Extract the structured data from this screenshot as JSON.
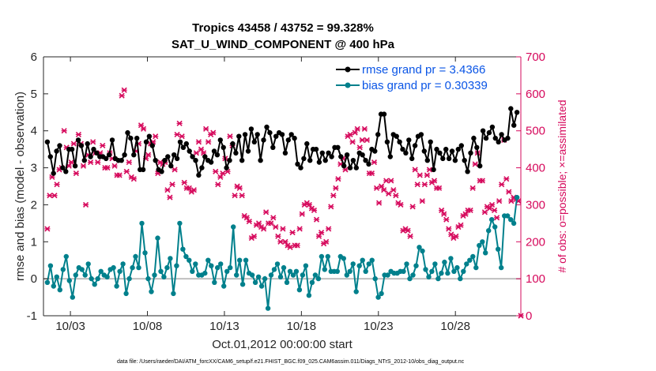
{
  "chart_data": {
    "type": "line",
    "title": "Tropics 43458 / 43752 = 99.328%",
    "subtitle": "SAT_U_WIND_COMPONENT @ 400 hPa",
    "xlabel": "Oct.01,2012 00:00:00 start",
    "ylabel": "rmse and bias (model - observation)",
    "ylabel_right": "# of obs: o=possible; ×=assimilated",
    "footnote": "data file: /Users/raeder/DAI/ATM_forcXX/CAM6_setup/f.e21.FHIST_BGC.f09_025.CAM6assim.011/Diags_NTrS_2012-10/obs_diag_output.nc",
    "x_unit": "days since Oct.01,2012 00:00:00",
    "xlim": [
      0.25,
      31.25
    ],
    "xticks": [
      2,
      7,
      12,
      17,
      22,
      27
    ],
    "xtick_labels": [
      "10/03",
      "10/08",
      "10/13",
      "10/18",
      "10/23",
      "10/28"
    ],
    "ylim": [
      -1,
      6
    ],
    "yticks": [
      -1,
      0,
      1,
      2,
      3,
      4,
      5,
      6
    ],
    "ylim_right": [
      0,
      700
    ],
    "yticks_right": [
      0,
      100,
      200,
      300,
      400,
      500,
      600,
      700
    ],
    "zero_line": 0,
    "legend_position": "top-right",
    "colors": {
      "rmse": "#000000",
      "bias": "#00808c",
      "obs": "#d6095c",
      "legend_text": "#0a55e6",
      "zero_line": "#bfbfbf"
    },
    "series": [
      {
        "name": "rmse grand pr = 3.4366",
        "axis": "left",
        "marker": "circle",
        "values": [
          3.7,
          3.3,
          2.85,
          3.45,
          3.6,
          3.0,
          2.9,
          3.5,
          3.5,
          3.05,
          3.75,
          3.6,
          3.2,
          3.65,
          3.3,
          3.5,
          3.4,
          3.3,
          3.3,
          3.25,
          3.35,
          3.75,
          3.25,
          3.2,
          3.2,
          3.35,
          3.95,
          3.8,
          3.35,
          3.8,
          2.95,
          2.95,
          3.7,
          3.85,
          3.6,
          3.2,
          2.95,
          2.9,
          3.2,
          3.3,
          3.05,
          3.35,
          3.25,
          3.7,
          3.55,
          3.65,
          3.45,
          3.3,
          3.2,
          2.8,
          3.0,
          3.3,
          3.2,
          3.15,
          3.45,
          3.35,
          3.75,
          3.55,
          3.0,
          3.2,
          3.65,
          3.4,
          3.85,
          3.2,
          3.9,
          3.45,
          4.05,
          3.7,
          3.9,
          3.2,
          3.75,
          4.1,
          3.95,
          3.55,
          3.85,
          3.95,
          3.9,
          3.4,
          3.75,
          3.9,
          3.8,
          3.1,
          3.0,
          3.25,
          3.65,
          3.2,
          3.5,
          3.5,
          3.15,
          3.4,
          3.2,
          3.4,
          3.3,
          3.55,
          3.55,
          3.3,
          3.05,
          3.35,
          3.0,
          3.2,
          3.0,
          3.4,
          3.35,
          3.2,
          3.1,
          3.5,
          3.45,
          3.9,
          4.45,
          4.45,
          3.7,
          3.3,
          3.9,
          3.85,
          3.7,
          3.5,
          3.4,
          3.75,
          3.25,
          3.6,
          3.85,
          3.9,
          3.45,
          3.2,
          3.7,
          2.95,
          3.5,
          3.4,
          3.25,
          3.5,
          3.25,
          3.45,
          3.2,
          3.5,
          3.6,
          3.2,
          2.9,
          3.4,
          3.8,
          3.55,
          3.05,
          4.0,
          3.8,
          3.95,
          4.1,
          3.8,
          3.7,
          3.9,
          3.75,
          3.8,
          4.6,
          4.15,
          4.5
        ]
      },
      {
        "name": "bias grand pr = 0.30339",
        "axis": "left",
        "marker": "circle",
        "values": [
          -0.1,
          0.35,
          -0.2,
          0.05,
          -0.3,
          0.25,
          0.6,
          -0.05,
          -0.5,
          0.1,
          0.3,
          0.25,
          0.1,
          0.4,
          0.0,
          -0.15,
          0.0,
          0.2,
          0.1,
          0.05,
          0.25,
          0.3,
          -0.2,
          0.2,
          0.4,
          -0.4,
          0.0,
          0.3,
          0.6,
          0.3,
          1.5,
          0.7,
          0.0,
          -0.35,
          0.1,
          1.1,
          0.2,
          0.05,
          0.3,
          0.55,
          -0.4,
          0.35,
          1.5,
          0.8,
          0.6,
          0.5,
          0.2,
          0.4,
          0.1,
          0.1,
          0.15,
          0.5,
          0.35,
          -0.1,
          0.3,
          0.4,
          -0.2,
          0.2,
          0.3,
          1.4,
          0.1,
          0.5,
          -0.15,
          0.5,
          0.15,
          0.1,
          -0.1,
          0.05,
          -0.2,
          0.0,
          -0.8,
          0.1,
          0.25,
          0.4,
          0.05,
          0.3,
          -0.1,
          0.2,
          0.1,
          0.2,
          -0.3,
          0.1,
          0.35,
          -0.45,
          -0.1,
          0.1,
          0.0,
          0.6,
          0.25,
          0.6,
          0.2,
          0.2,
          0.2,
          0.6,
          0.55,
          0.1,
          0.2,
          0.4,
          -0.35,
          0.35,
          0.5,
          0.2,
          0.4,
          0.5,
          0.0,
          -0.5,
          -0.4,
          0.1,
          0.1,
          0.2,
          0.15,
          0.15,
          0.2,
          0.2,
          0.4,
          0.0,
          0.1,
          0.35,
          0.85,
          0.75,
          0.25,
          0.05,
          0.2,
          0.4,
          0.0,
          0.15,
          0.45,
          0.15,
          0.55,
          0.2,
          0.3,
          0.0,
          0.2,
          0.4,
          0.5,
          0.6,
          0.3,
          0.9,
          1.0,
          0.7,
          1.3,
          1.6,
          1.4,
          0.8,
          0.3,
          1.7,
          1.7,
          1.6,
          1.5,
          2.2
        ]
      },
      {
        "name": "obs possible/assimilated",
        "axis": "right",
        "marker": "x",
        "values": [
          235,
          325,
          375,
          325,
          355,
          395,
          400,
          500,
          455,
          405,
          415,
          465,
          385,
          490,
          465,
          405,
          300,
          435,
          415,
          470,
          440,
          415,
          440,
          460,
          400,
          400,
          440,
          425,
          405,
          380,
          380,
          595,
          610,
          390,
          415,
          375,
          370,
          445,
          465,
          515,
          505,
          425,
          435,
          465,
          470,
          485,
          385,
          415,
          410,
          415,
          340,
          320,
          355,
          395,
          490,
          520,
          485,
          360,
          345,
          345,
          335,
          340,
          440,
          470,
          450,
          440,
          505,
          470,
          490,
          495,
          390,
          355,
          375,
          385,
          425,
          390,
          485,
          460,
          325,
          350,
          345,
          325,
          270,
          265,
          255,
          210,
          215,
          245,
          250,
          240,
          235,
          280,
          250,
          250,
          265,
          240,
          215,
          200,
          235,
          200,
          190,
          185,
          225,
          190,
          190,
          235,
          275,
          300,
          305,
          300,
          290,
          285,
          260,
          215,
          225,
          195,
          200,
          235,
          295,
          325,
          345,
          370,
          410,
          425,
          395,
          485,
          490,
          470,
          495,
          505,
          455,
          475,
          505,
          475,
          385,
          385,
          415,
          345,
          305,
          350,
          340,
          365,
          330,
          365,
          340,
          325,
          305,
          300,
          230,
          235,
          230,
          215,
          295,
          395,
          355,
          380,
          310,
          355,
          380,
          395,
          360,
          365,
          345,
          345,
          285,
          275,
          260,
          235,
          220,
          210,
          215,
          240,
          245,
          270,
          275,
          285,
          285,
          345,
          410,
          440,
          365,
          365,
          280,
          295,
          290,
          300,
          285,
          265,
          310,
          355,
          475,
          370,
          335,
          310,
          320,
          315,
          310,
          0
        ]
      }
    ]
  }
}
